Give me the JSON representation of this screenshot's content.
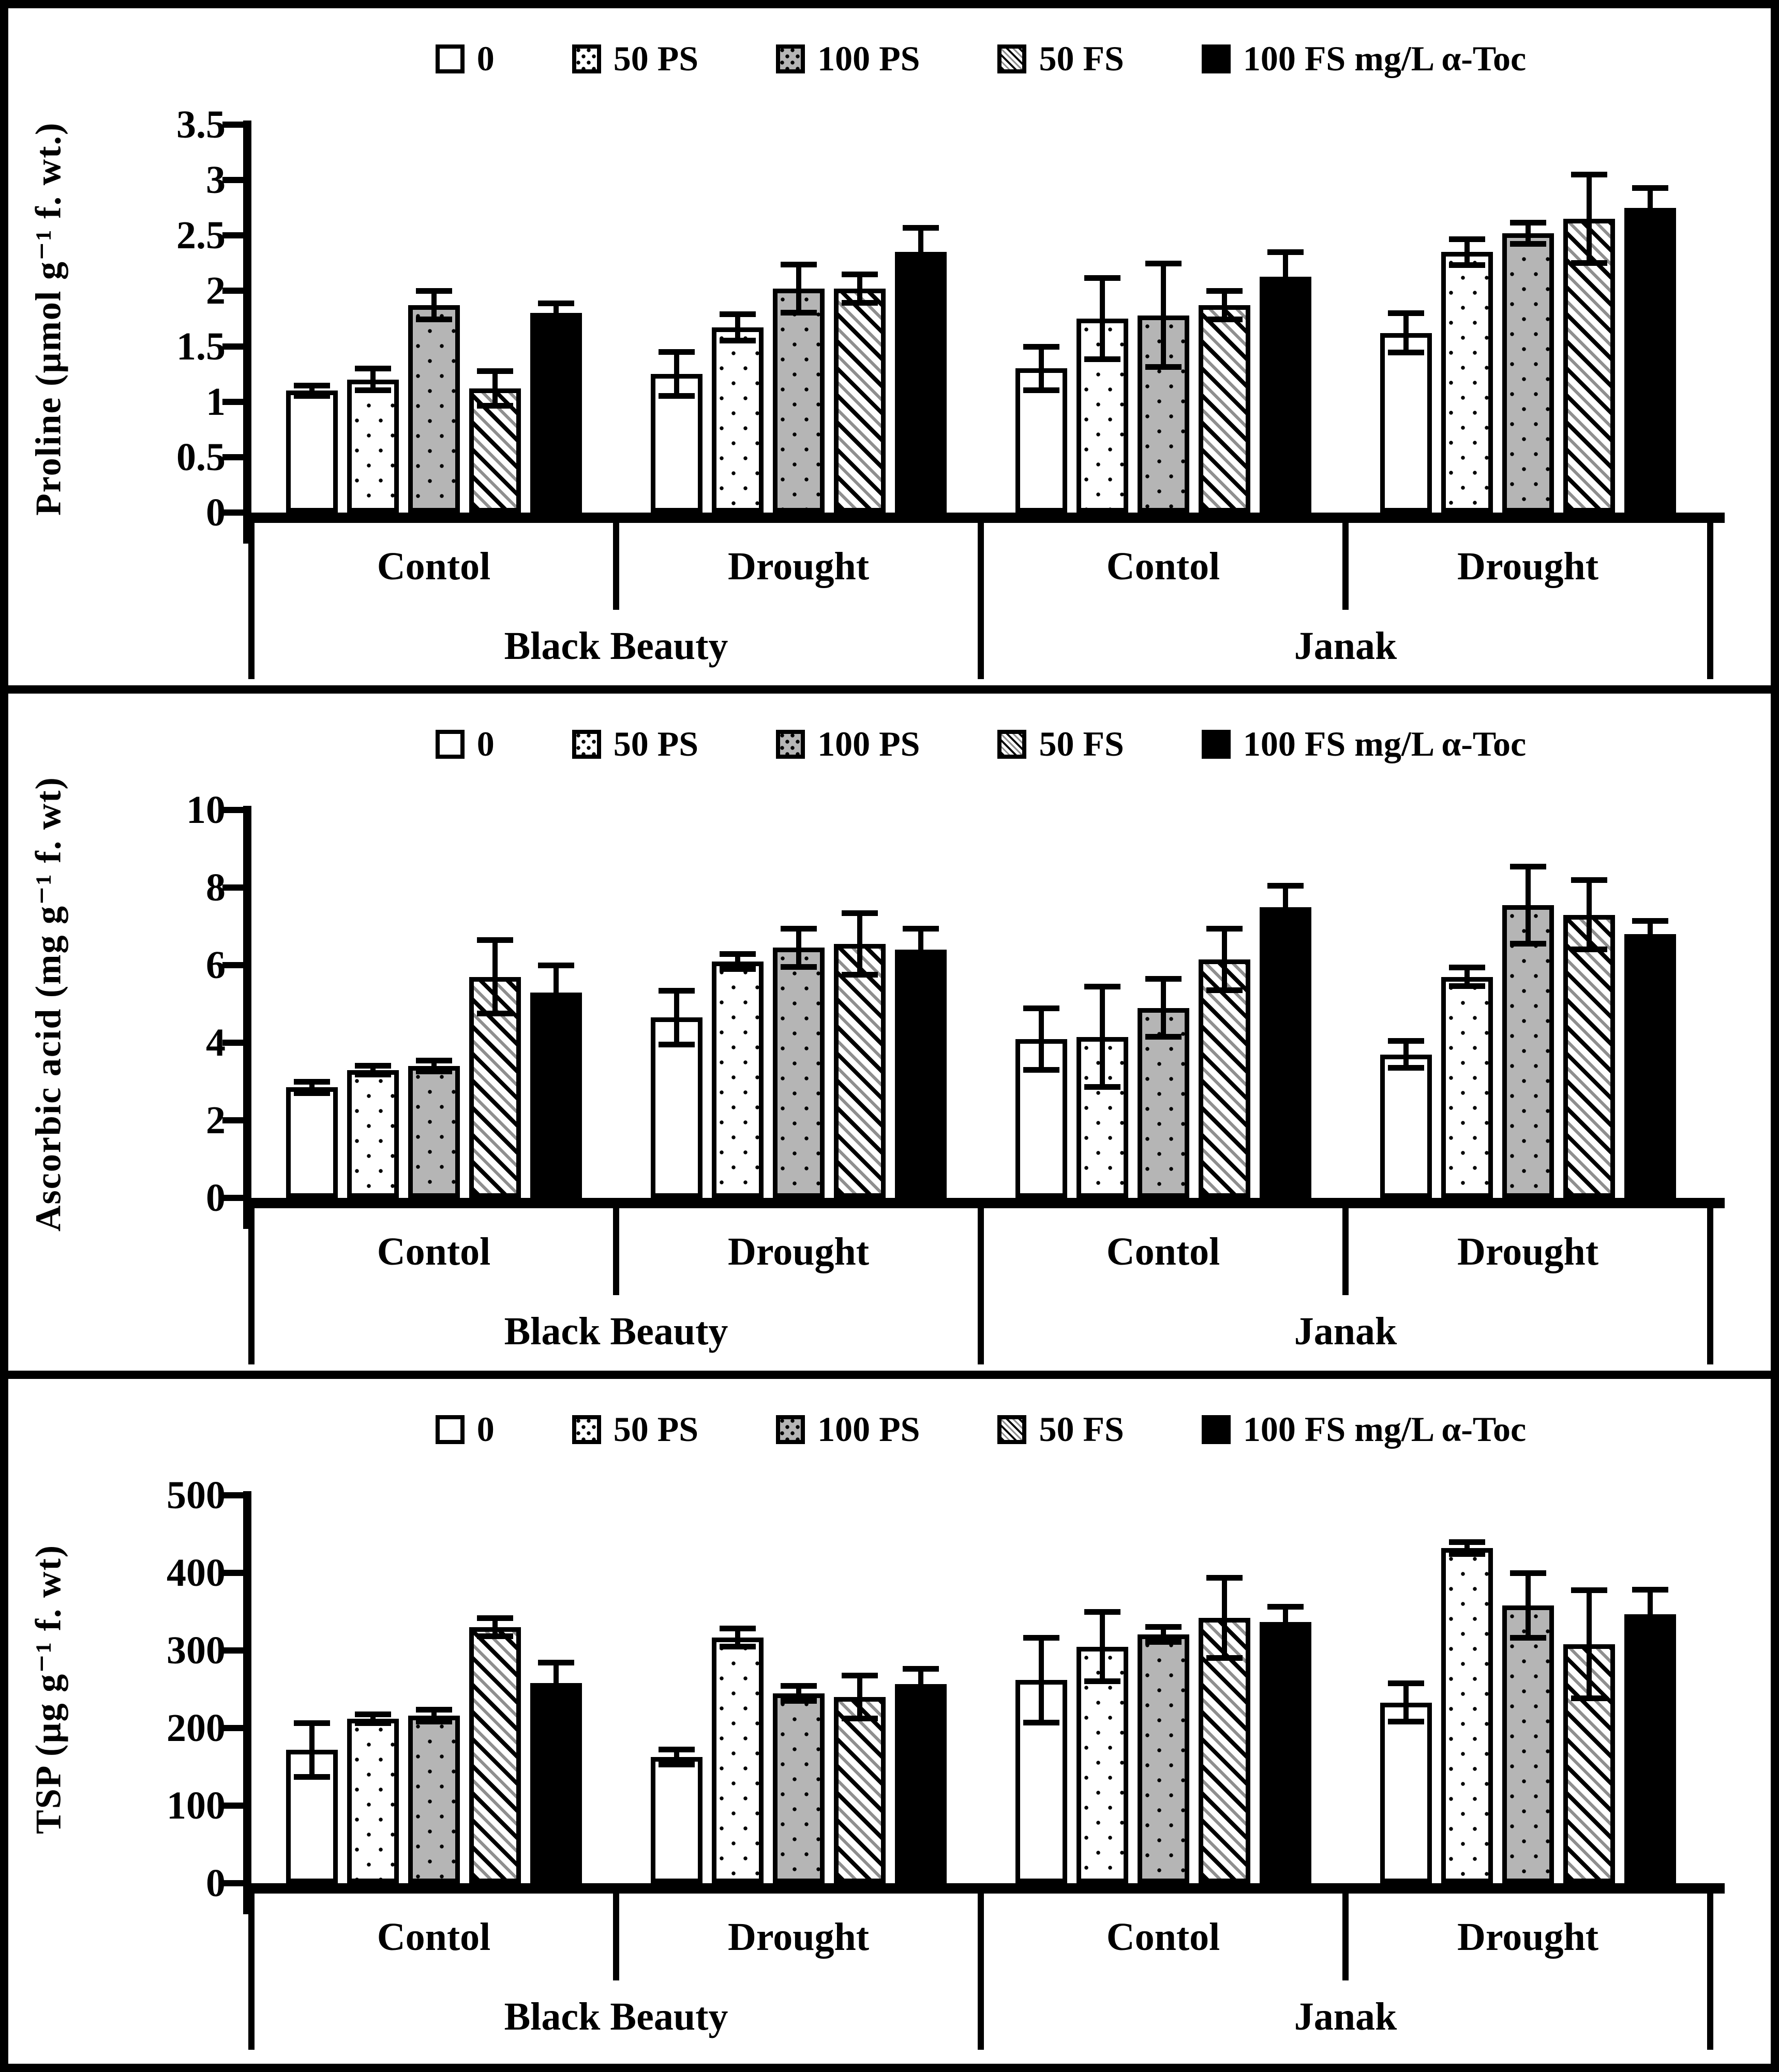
{
  "colors": {
    "ink": "#000000",
    "background": "#ffffff",
    "bar_gray_fill": "#b5b5b5",
    "hatch_gray": "#8f8f8f"
  },
  "chart_data": [
    {
      "type": "bar",
      "title": "",
      "ylabel": "Proline (µmol g⁻¹ f. wt.)",
      "xlabel": "",
      "ylim": [
        0,
        3.5
      ],
      "ytick_labels": [
        "3.5",
        "3",
        "2.5",
        "2",
        "1.5",
        "1",
        "0.5",
        "0"
      ],
      "grid": false,
      "legend_position": "top-center",
      "legend": [
        "0",
        "50 PS",
        "100 PS",
        "50 FS",
        "100 FS mg/L α-Toc"
      ],
      "group_labels": [
        "Contol",
        "Drought",
        "Contol",
        "Drought"
      ],
      "cultivar_labels": [
        "Black Beauty",
        "Janak"
      ],
      "series": [
        {
          "name": "0",
          "pattern": "white",
          "values": [
            1.1,
            1.25,
            1.3,
            1.62
          ],
          "errors": [
            0.05,
            0.2,
            0.2,
            0.18
          ]
        },
        {
          "name": "50 PS",
          "pattern": "dots",
          "values": [
            1.2,
            1.67,
            1.75,
            2.35
          ],
          "errors": [
            0.1,
            0.12,
            0.37,
            0.12
          ]
        },
        {
          "name": "100 PS",
          "pattern": "gray-dots",
          "values": [
            1.87,
            2.02,
            1.78,
            2.52
          ],
          "errors": [
            0.13,
            0.22,
            0.47,
            0.1
          ]
        },
        {
          "name": "50 FS",
          "pattern": "diagonal",
          "values": [
            1.12,
            2.02,
            1.87,
            2.65
          ],
          "errors": [
            0.16,
            0.13,
            0.13,
            0.4
          ]
        },
        {
          "name": "100 FS mg/L α-Toc",
          "pattern": "black",
          "values": [
            1.8,
            2.35,
            2.13,
            2.75
          ],
          "errors": [
            0.09,
            0.22,
            0.22,
            0.18
          ]
        }
      ]
    },
    {
      "type": "bar",
      "title": "",
      "ylabel": "Ascorbic acid (mg g⁻¹ f. wt)",
      "xlabel": "",
      "ylim": [
        0,
        10
      ],
      "ytick_labels": [
        "10",
        "8",
        "6",
        "4",
        "2",
        "0"
      ],
      "grid": false,
      "legend_position": "top-center",
      "legend": [
        "0",
        "50 PS",
        "100 PS",
        "50 FS",
        "100 FS mg/L α-Toc"
      ],
      "group_labels": [
        "Contol",
        "Drought",
        "Contol",
        "Drought"
      ],
      "cultivar_labels": [
        "Black Beauty",
        "Janak"
      ],
      "series": [
        {
          "name": "0",
          "pattern": "white",
          "values": [
            2.85,
            4.65,
            4.1,
            3.7
          ],
          "errors": [
            0.15,
            0.7,
            0.8,
            0.35
          ]
        },
        {
          "name": "50 PS",
          "pattern": "dots",
          "values": [
            3.3,
            6.1,
            4.15,
            5.7
          ],
          "errors": [
            0.12,
            0.2,
            1.3,
            0.25
          ]
        },
        {
          "name": "100 PS",
          "pattern": "gray-dots",
          "values": [
            3.4,
            6.45,
            4.9,
            7.55
          ],
          "errors": [
            0.15,
            0.5,
            0.75,
            1.0
          ]
        },
        {
          "name": "50 FS",
          "pattern": "diagonal",
          "values": [
            5.7,
            6.55,
            6.15,
            7.3
          ],
          "errors": [
            0.95,
            0.8,
            0.8,
            0.9
          ]
        },
        {
          "name": "100 FS mg/L α-Toc",
          "pattern": "black",
          "values": [
            5.3,
            6.4,
            7.5,
            6.8
          ],
          "errors": [
            0.7,
            0.55,
            0.55,
            0.35
          ]
        }
      ]
    },
    {
      "type": "bar",
      "title": "",
      "ylabel": "TSP  (µg g⁻¹ f. wt)",
      "xlabel": "",
      "ylim": [
        0,
        500
      ],
      "ytick_labels": [
        "500",
        "400",
        "300",
        "200",
        "100",
        "0"
      ],
      "grid": false,
      "legend_position": "top-center",
      "legend": [
        "0",
        "50 PS",
        "100 PS",
        "50 FS",
        "100 FS mg/L α-Toc"
      ],
      "group_labels": [
        "Contol",
        "Drought",
        "Contol",
        "Drought"
      ],
      "cultivar_labels": [
        "Black Beauty",
        "Janak"
      ],
      "series": [
        {
          "name": "0",
          "pattern": "white",
          "values": [
            172,
            163,
            262,
            233
          ],
          "errors": [
            35,
            10,
            55,
            25
          ]
        },
        {
          "name": "50 PS",
          "pattern": "dots",
          "values": [
            212,
            317,
            305,
            432
          ],
          "errors": [
            6,
            12,
            45,
            8
          ]
        },
        {
          "name": "100 PS",
          "pattern": "gray-dots",
          "values": [
            216,
            245,
            321,
            358
          ],
          "errors": [
            8,
            10,
            10,
            42
          ]
        },
        {
          "name": "50 FS",
          "pattern": "diagonal",
          "values": [
            330,
            240,
            342,
            308
          ],
          "errors": [
            12,
            28,
            52,
            70
          ]
        },
        {
          "name": "100 FS mg/L α-Toc",
          "pattern": "black",
          "values": [
            258,
            257,
            337,
            347
          ],
          "errors": [
            27,
            20,
            20,
            32
          ]
        }
      ]
    }
  ]
}
